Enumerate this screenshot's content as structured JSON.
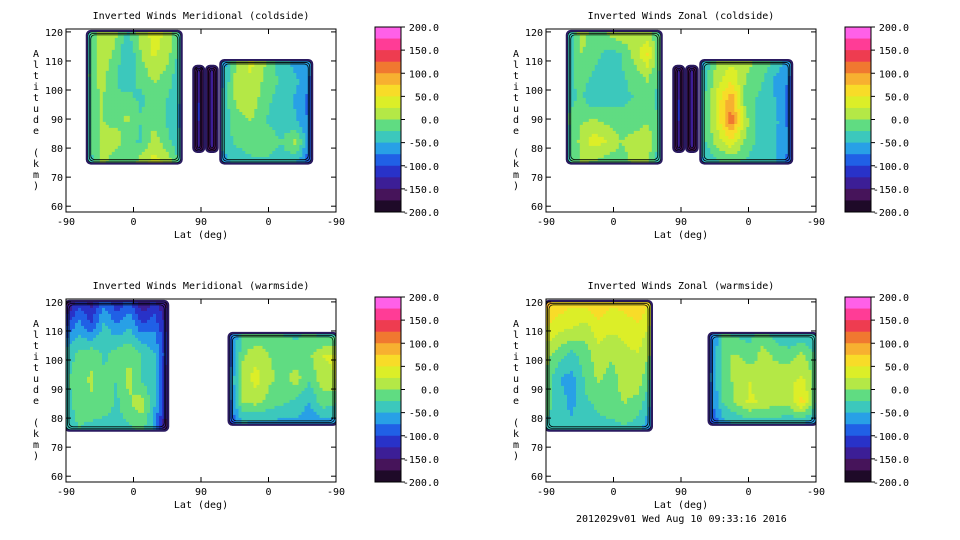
{
  "footer": "2012029v01 Wed Aug 10 09:33:16 2016",
  "colorbar": {
    "labels": [
      "200.0",
      "150.0",
      "100.0",
      "50.0",
      "0.0",
      "-50.0",
      "-100.0",
      "-150.0",
      "-200.0"
    ],
    "colors": [
      "#ff60e8",
      "#ff3c96",
      "#ee3c50",
      "#f07830",
      "#f7b030",
      "#f8dc28",
      "#dcee28",
      "#b4e846",
      "#60dc82",
      "#3cc8bc",
      "#28a0e6",
      "#2060e6",
      "#2832c8",
      "#3c1e96",
      "#46145a",
      "#1e0a28"
    ]
  },
  "chart_data": [
    {
      "type": "heatmap",
      "title": "Inverted Winds Meridional (coldside)",
      "xlabel": "Lat (deg)",
      "ylabel": "Altitude (km)",
      "xticks": [
        "-90",
        "0",
        "90",
        "0",
        "-90"
      ],
      "yticks": [
        "60",
        "70",
        "80",
        "90",
        "100",
        "110",
        "120"
      ],
      "ylim": [
        58,
        121
      ],
      "colorbar_range": [
        -200,
        200
      ],
      "bands": [
        {
          "orbit_pos": [
            -61,
            63
          ],
          "alt": [
            75,
            120
          ],
          "z": [
            [
              -40,
              25,
              10,
              -30,
              15,
              35,
              20,
              -40
            ],
            [
              -35,
              20,
              -5,
              -50,
              0,
              30,
              10,
              -40
            ],
            [
              -30,
              15,
              -20,
              -40,
              -15,
              10,
              -10,
              -45
            ],
            [
              -35,
              5,
              -25,
              -20,
              -30,
              -15,
              -25,
              -50
            ],
            [
              -30,
              0,
              -10,
              5,
              -25,
              -10,
              -30,
              -60
            ],
            [
              -40,
              10,
              15,
              -15,
              -30,
              15,
              -20,
              -45
            ],
            [
              -45,
              10,
              -15,
              -25,
              15,
              35,
              20,
              -40
            ]
          ]
        },
        {
          "orbit_pos": [
            81,
            93
          ],
          "alt": [
            79,
            108
          ],
          "z": [
            [
              -190,
              -150,
              -190
            ],
            [
              -180,
              -120,
              -180
            ],
            [
              -170,
              -140,
              -170
            ]
          ]
        },
        {
          "orbit_pos": [
            98,
            111
          ],
          "alt": [
            79,
            108
          ],
          "z": [
            [
              -190,
              -140,
              -190
            ],
            [
              -180,
              -130,
              -180
            ],
            [
              -170,
              -150,
              -170
            ]
          ]
        },
        {
          "orbit_pos": [
            117,
            237
          ],
          "alt": [
            75,
            110
          ],
          "z": [
            [
              -80,
              5,
              30,
              0,
              -40,
              -60,
              -70
            ],
            [
              -60,
              10,
              25,
              -10,
              -30,
              -45,
              -80
            ],
            [
              -50,
              5,
              15,
              -20,
              -35,
              -55,
              -90
            ],
            [
              -50,
              -10,
              0,
              -25,
              -40,
              -45,
              -85
            ],
            [
              -40,
              -20,
              -15,
              -5,
              -25,
              10,
              -90
            ],
            [
              -70,
              -40,
              -30,
              -30,
              -40,
              -50,
              -100
            ]
          ]
        }
      ]
    },
    {
      "type": "heatmap",
      "title": "Inverted Winds Zonal (coldside)",
      "xlabel": "Lat (deg)",
      "ylabel": "Altitude (km)",
      "xticks": [
        "-90",
        "0",
        "90",
        "0",
        "-90"
      ],
      "yticks": [
        "60",
        "70",
        "80",
        "90",
        "100",
        "110",
        "120"
      ],
      "ylim": [
        58,
        121
      ],
      "colorbar_range": [
        -200,
        200
      ],
      "bands": [
        {
          "orbit_pos": [
            -61,
            63
          ],
          "alt": [
            75,
            120
          ],
          "z": [
            [
              -45,
              15,
              -15,
              5,
              20,
              10,
              5,
              -30
            ],
            [
              -50,
              0,
              -15,
              -35,
              -25,
              10,
              55,
              -30
            ],
            [
              -40,
              -10,
              -30,
              -45,
              -30,
              -15,
              5,
              -30
            ],
            [
              -35,
              -20,
              -50,
              -40,
              -30,
              -25,
              -10,
              -40
            ],
            [
              -25,
              -5,
              0,
              -10,
              -20,
              -15,
              -5,
              -30
            ],
            [
              -35,
              10,
              40,
              25,
              0,
              10,
              20,
              -40
            ],
            [
              -40,
              5,
              -5,
              -15,
              -10,
              5,
              0,
              -45
            ]
          ]
        },
        {
          "orbit_pos": [
            81,
            93
          ],
          "alt": [
            79,
            108
          ],
          "z": [
            [
              -190,
              -140,
              -190
            ],
            [
              -180,
              -120,
              -180
            ],
            [
              -170,
              -140,
              -170
            ]
          ]
        },
        {
          "orbit_pos": [
            98,
            111
          ],
          "alt": [
            79,
            108
          ],
          "z": [
            [
              -190,
              -140,
              -190
            ],
            [
              -180,
              -130,
              -180
            ],
            [
              -170,
              -150,
              -170
            ]
          ]
        },
        {
          "orbit_pos": [
            117,
            237
          ],
          "alt": [
            75,
            110
          ],
          "z": [
            [
              -60,
              0,
              20,
              10,
              -10,
              -30,
              -70
            ],
            [
              -50,
              15,
              50,
              -5,
              -20,
              -60,
              -80
            ],
            [
              -40,
              30,
              100,
              -15,
              -35,
              -50,
              -90
            ],
            [
              -40,
              25,
              115,
              10,
              -40,
              -45,
              -90
            ],
            [
              -40,
              10,
              40,
              -10,
              -35,
              -50,
              -80
            ],
            [
              -60,
              -30,
              -20,
              -30,
              -45,
              -50,
              -90
            ]
          ]
        }
      ]
    },
    {
      "type": "heatmap",
      "title": "Inverted Winds Meridional (warmside)",
      "xlabel": "Lat (deg)",
      "ylabel": "Altitude (km)",
      "xticks": [
        "-90",
        "0",
        "90",
        "0",
        "-90"
      ],
      "yticks": [
        "60",
        "70",
        "80",
        "90",
        "100",
        "110",
        "120"
      ],
      "ylim": [
        58,
        121
      ],
      "colorbar_range": [
        -200,
        200
      ],
      "bands": [
        {
          "orbit_pos": [
            -90,
            45
          ],
          "alt": [
            76,
            120
          ],
          "z": [
            [
              -160,
              -110,
              -140,
              -80,
              -120,
              -90,
              -150,
              -120,
              -160
            ],
            [
              -100,
              -60,
              -90,
              -40,
              -70,
              -50,
              -90,
              -80,
              -130
            ],
            [
              -40,
              -20,
              -10,
              -30,
              -15,
              -5,
              -25,
              -50,
              -120
            ],
            [
              -30,
              -10,
              5,
              -20,
              -25,
              10,
              -30,
              -40,
              -140
            ],
            [
              -35,
              -15,
              -5,
              -10,
              -30,
              -5,
              15,
              -50,
              -150
            ],
            [
              -45,
              -25,
              -35,
              -40,
              -35,
              -30,
              -20,
              -55,
              -160
            ]
          ]
        },
        {
          "orbit_pos": [
            128,
            270
          ],
          "alt": [
            78,
            109
          ],
          "z": [
            [
              -100,
              -15,
              -20,
              -10,
              -25,
              -30,
              -20,
              -35,
              -30
            ],
            [
              -90,
              -5,
              20,
              0,
              -15,
              -10,
              -5,
              25,
              30
            ],
            [
              -80,
              15,
              35,
              5,
              -5,
              10,
              -20,
              15,
              25
            ],
            [
              -85,
              0,
              10,
              -10,
              -20,
              -30,
              -50,
              -10,
              -20
            ],
            [
              -110,
              -50,
              -60,
              -55,
              -60,
              -55,
              -70,
              -60,
              -60
            ]
          ]
        }
      ]
    },
    {
      "type": "heatmap",
      "title": "Inverted Winds Zonal (warmside)",
      "xlabel": "Lat (deg)",
      "ylabel": "Altitude (km)",
      "xticks": [
        "-90",
        "0",
        "90",
        "0",
        "-90"
      ],
      "yticks": [
        "60",
        "70",
        "80",
        "90",
        "100",
        "110",
        "120"
      ],
      "ylim": [
        58,
        121
      ],
      "colorbar_range": [
        -200,
        200
      ],
      "bands": [
        {
          "orbit_pos": [
            -90,
            50
          ],
          "alt": [
            76,
            120
          ],
          "z": [
            [
              85,
              65,
              55,
              60,
              70,
              55,
              60,
              75,
              50
            ],
            [
              50,
              35,
              25,
              15,
              40,
              30,
              35,
              45,
              20
            ],
            [
              10,
              -10,
              -30,
              -10,
              15,
              5,
              20,
              25,
              0
            ],
            [
              -5,
              -50,
              -60,
              -20,
              5,
              -10,
              10,
              15,
              -30
            ],
            [
              -10,
              -40,
              -55,
              -30,
              -20,
              -5,
              0,
              -10,
              -50
            ],
            [
              -40,
              -50,
              -45,
              -40,
              -35,
              -40,
              -30,
              -40,
              -80
            ]
          ]
        },
        {
          "orbit_pos": [
            128,
            270
          ],
          "alt": [
            78,
            109
          ],
          "z": [
            [
              -100,
              -20,
              -30,
              -35,
              -10,
              -40,
              -50,
              -45,
              -50
            ],
            [
              -90,
              -10,
              5,
              -15,
              10,
              -5,
              -10,
              10,
              -30
            ],
            [
              -80,
              -20,
              10,
              25,
              5,
              15,
              20,
              30,
              -10
            ],
            [
              -90,
              -25,
              5,
              30,
              20,
              10,
              15,
              60,
              -20
            ],
            [
              -110,
              -60,
              -50,
              -40,
              -45,
              -40,
              -50,
              -50,
              -70
            ]
          ]
        }
      ]
    }
  ]
}
